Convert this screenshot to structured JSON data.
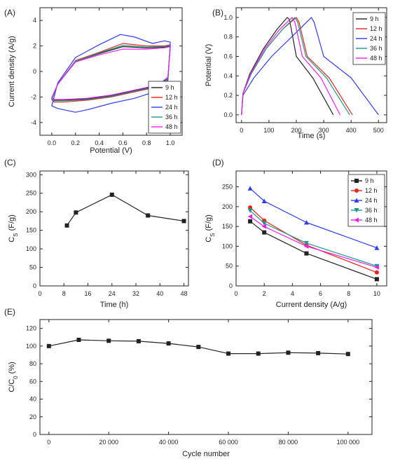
{
  "colors": {
    "9 h": "#222222",
    "12 h": "#e8251b",
    "24 h": "#2d3df0",
    "36 h": "#1a9a8a",
    "48 h": "#f01cf0"
  },
  "chart_data": [
    {
      "panel_label": "(A)",
      "type": "line",
      "xlabel": "Potential (V)",
      "ylabel": "Current density (A/g)",
      "xlim": [
        -0.1,
        1.1
      ],
      "ylim": [
        -5,
        5
      ],
      "xticks": [
        0.0,
        0.2,
        0.4,
        0.6,
        0.8,
        1.0
      ],
      "xtick_labels": [
        "0.0",
        "0.2",
        "0.4",
        "0.6",
        "0.8",
        "1.0"
      ],
      "yticks": [
        -4,
        -2,
        0,
        2,
        4
      ],
      "ytick_labels": [
        "-4",
        "-2",
        "0",
        "2",
        "4"
      ],
      "legend_position": "bottom-right",
      "series": [
        {
          "name": "9 h",
          "x": [
            0,
            0.05,
            0.2,
            0.4,
            0.6,
            0.8,
            0.95,
            1.0,
            0.98,
            0.9,
            0.7,
            0.5,
            0.3,
            0.1,
            0.02,
            0
          ],
          "y": [
            -2.1,
            -1.0,
            0.8,
            1.4,
            1.95,
            1.85,
            1.9,
            2.0,
            -0.5,
            -1.1,
            -1.5,
            -1.9,
            -2.15,
            -2.25,
            -2.25,
            -2.1
          ]
        },
        {
          "name": "12 h",
          "x": [
            0,
            0.05,
            0.2,
            0.4,
            0.6,
            0.8,
            0.95,
            1.0,
            0.98,
            0.9,
            0.7,
            0.5,
            0.3,
            0.1,
            0.02,
            0
          ],
          "y": [
            -2.2,
            -1.0,
            0.85,
            1.5,
            2.2,
            2.0,
            2.0,
            2.1,
            -0.6,
            -1.2,
            -1.6,
            -2.0,
            -2.25,
            -2.4,
            -2.4,
            -2.2
          ]
        },
        {
          "name": "24 h",
          "x": [
            0,
            0.05,
            0.2,
            0.4,
            0.58,
            0.7,
            0.85,
            0.95,
            1.0,
            0.98,
            0.9,
            0.7,
            0.5,
            0.3,
            0.2,
            0.05,
            0
          ],
          "y": [
            -2.7,
            -0.9,
            1.1,
            2.1,
            2.9,
            2.7,
            2.2,
            2.4,
            2.3,
            -0.7,
            -1.5,
            -2.1,
            -2.5,
            -3.0,
            -3.2,
            -2.9,
            -2.7
          ]
        },
        {
          "name": "36 h",
          "x": [
            0,
            0.05,
            0.2,
            0.4,
            0.6,
            0.8,
            0.95,
            1.0,
            0.98,
            0.9,
            0.7,
            0.5,
            0.3,
            0.1,
            0.02,
            0
          ],
          "y": [
            -2.15,
            -1.0,
            0.8,
            1.45,
            2.05,
            1.9,
            1.95,
            2.05,
            -0.55,
            -1.15,
            -1.55,
            -1.95,
            -2.2,
            -2.3,
            -2.3,
            -2.15
          ]
        },
        {
          "name": "48 h",
          "x": [
            0,
            0.05,
            0.2,
            0.4,
            0.6,
            0.8,
            0.95,
            1.0,
            0.98,
            0.9,
            0.7,
            0.5,
            0.3,
            0.1,
            0.02,
            0
          ],
          "y": [
            -2.05,
            -1.0,
            0.75,
            1.3,
            1.75,
            1.75,
            1.85,
            1.95,
            -0.45,
            -1.05,
            -1.45,
            -1.85,
            -2.1,
            -2.2,
            -2.2,
            -2.05
          ]
        }
      ]
    },
    {
      "panel_label": "(B)",
      "type": "line",
      "xlabel": "Time (s)",
      "ylabel": "Potential (V)",
      "xlim": [
        -20,
        530
      ],
      "ylim": [
        -0.08,
        1.1
      ],
      "xticks": [
        0,
        100,
        200,
        300,
        400,
        500
      ],
      "xtick_labels": [
        "0",
        "100",
        "200",
        "300",
        "400",
        "500"
      ],
      "yticks": [
        0.0,
        0.2,
        0.4,
        0.6,
        0.8,
        1.0
      ],
      "ytick_labels": [
        "0.0",
        "0.2",
        "0.4",
        "0.6",
        "0.8",
        "1.0"
      ],
      "legend_position": "top-right",
      "series": [
        {
          "name": "9 h",
          "x": [
            0,
            5,
            30,
            80,
            130,
            167,
            175,
            200,
            260,
            335
          ],
          "y": [
            0,
            0.22,
            0.42,
            0.68,
            0.88,
            1.0,
            0.98,
            0.6,
            0.38,
            0
          ]
        },
        {
          "name": "12 h",
          "x": [
            0,
            5,
            35,
            90,
            150,
            200,
            210,
            240,
            320,
            405
          ],
          "y": [
            0,
            0.22,
            0.42,
            0.68,
            0.88,
            1.0,
            0.95,
            0.6,
            0.38,
            0
          ]
        },
        {
          "name": "24 h",
          "x": [
            0,
            5,
            45,
            110,
            190,
            255,
            265,
            300,
            400,
            500
          ],
          "y": [
            0,
            0.2,
            0.38,
            0.6,
            0.82,
            1.0,
            0.95,
            0.6,
            0.38,
            0
          ]
        },
        {
          "name": "36 h",
          "x": [
            0,
            5,
            35,
            90,
            150,
            195,
            205,
            235,
            310,
            395
          ],
          "y": [
            0,
            0.22,
            0.42,
            0.68,
            0.88,
            1.0,
            0.95,
            0.6,
            0.38,
            0
          ]
        },
        {
          "name": "48 h",
          "x": [
            0,
            5,
            32,
            85,
            140,
            185,
            195,
            222,
            290,
            360
          ],
          "y": [
            0,
            0.22,
            0.42,
            0.68,
            0.88,
            1.0,
            0.95,
            0.6,
            0.38,
            0
          ]
        }
      ]
    },
    {
      "panel_label": "(C)",
      "type": "line",
      "xlabel": "Time (h)",
      "ylabel": "C_S (F/g)",
      "ylabel_main": "C",
      "ylabel_sub": "S",
      "ylabel_unit": " (F/g)",
      "xlim": [
        0,
        49.5
      ],
      "ylim": [
        0,
        310
      ],
      "xticks": [
        0,
        8,
        16,
        24,
        32,
        40,
        48
      ],
      "xtick_labels": [
        "0",
        "8",
        "16",
        "24",
        "32",
        "40",
        "48"
      ],
      "yticks": [
        0,
        50,
        100,
        150,
        200,
        250,
        300
      ],
      "ytick_labels": [
        "0",
        "50",
        "100",
        "150",
        "200",
        "250",
        "300"
      ],
      "series": [
        {
          "name": "",
          "x": [
            9,
            12,
            24,
            36,
            48
          ],
          "y": [
            163,
            198,
            246,
            190,
            175
          ]
        }
      ]
    },
    {
      "panel_label": "(D)",
      "type": "line",
      "xlabel": "Current density (A/g)",
      "ylabel": "C_S (F/g)",
      "ylabel_main": "C",
      "ylabel_sub": "S",
      "ylabel_unit": " (F/g)",
      "xlim": [
        0,
        10.7
      ],
      "ylim": [
        0,
        290
      ],
      "xticks": [
        0,
        2,
        4,
        6,
        8,
        10
      ],
      "xtick_labels": [
        "0",
        "2",
        "4",
        "6",
        "8",
        "10"
      ],
      "yticks": [
        0,
        50,
        100,
        150,
        200,
        250
      ],
      "ytick_labels": [
        "0",
        "50",
        "100",
        "150",
        "200",
        "250"
      ],
      "legend_position": "top-right",
      "series": [
        {
          "name": "9 h",
          "marker": "square",
          "x": [
            1,
            2,
            5,
            10
          ],
          "y": [
            163,
            135,
            82,
            17
          ]
        },
        {
          "name": "12 h",
          "marker": "circle",
          "x": [
            1,
            2,
            5,
            10
          ],
          "y": [
            198,
            165,
            103,
            34
          ]
        },
        {
          "name": "24 h",
          "marker": "triangle-up",
          "x": [
            1,
            2,
            5,
            10
          ],
          "y": [
            246,
            214,
            160,
            96
          ]
        },
        {
          "name": "36 h",
          "marker": "triangle-down",
          "x": [
            1,
            2,
            5,
            10
          ],
          "y": [
            190,
            158,
            108,
            50
          ]
        },
        {
          "name": "48 h",
          "marker": "triangle-left",
          "x": [
            1,
            2,
            5,
            10
          ],
          "y": [
            175,
            150,
            100,
            47
          ]
        }
      ]
    },
    {
      "panel_label": "(E)",
      "type": "line",
      "xlabel": "Cycle number",
      "ylabel": "C/C_0 (%)",
      "ylabel_main": "C/C",
      "ylabel_sub": "0",
      "ylabel_unit": " (%)",
      "xlim": [
        -3000,
        108000
      ],
      "ylim": [
        0,
        130
      ],
      "xticks": [
        0,
        20000,
        40000,
        60000,
        80000,
        100000
      ],
      "xtick_labels": [
        "0",
        "20 000",
        "40 000",
        "60 000",
        "80 000",
        "100 000"
      ],
      "yticks": [
        0,
        20,
        40,
        60,
        80,
        100,
        120
      ],
      "ytick_labels": [
        "0",
        "20",
        "40",
        "60",
        "80",
        "100",
        "120"
      ],
      "series": [
        {
          "name": "",
          "x": [
            0,
            10000,
            20000,
            30000,
            40000,
            50000,
            60000,
            70000,
            80000,
            90000,
            100000
          ],
          "y": [
            100,
            107,
            106,
            105.5,
            103,
            99,
            91.5,
            91.5,
            92.5,
            92,
            91
          ]
        }
      ]
    }
  ]
}
